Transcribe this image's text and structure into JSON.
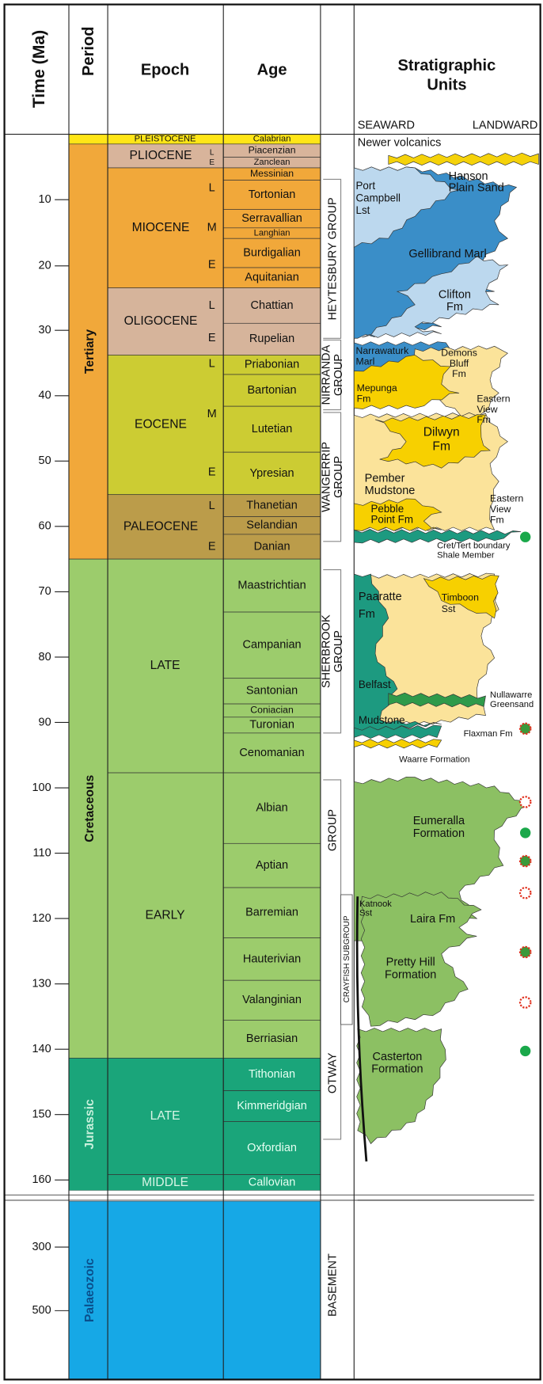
{
  "header": {
    "time": "Time (Ma)",
    "period": "Period",
    "epoch": "Epoch",
    "age": "Age",
    "units": [
      "Stratigraphic",
      "Units"
    ],
    "seaward": "SEAWARD",
    "landward": "LANDWARD"
  },
  "time_ticks": [
    10,
    20,
    30,
    40,
    50,
    60,
    70,
    80,
    90,
    100,
    110,
    120,
    130,
    140,
    150,
    160,
    300,
    500
  ],
  "periods": [
    "Tertiary",
    "Cretaceous",
    "Jurassic",
    "Palaeozoic"
  ],
  "epochs": [
    {
      "name": "PLEISTOCENE"
    },
    {
      "name": "PLIOCENE",
      "subdivisions": [
        "L",
        "E"
      ]
    },
    {
      "name": "MIOCENE",
      "subdivisions": [
        "L",
        "M",
        "E"
      ]
    },
    {
      "name": "OLIGOCENE",
      "subdivisions": [
        "L",
        "E"
      ]
    },
    {
      "name": "EOCENE",
      "subdivisions": [
        "L",
        "M",
        "E"
      ]
    },
    {
      "name": "PALEOCENE",
      "subdivisions": [
        "L",
        "E"
      ]
    },
    {
      "name": "LATE"
    },
    {
      "name": "EARLY"
    },
    {
      "name": "LATE"
    },
    {
      "name": "MIDDLE"
    }
  ],
  "ages": [
    "Calabrian",
    "Piacenzian",
    "Zanclean",
    "Messinian",
    "Tortonian",
    "Serravallian",
    "Langhian",
    "Burdigalian",
    "Aquitanian",
    "Chattian",
    "Rupelian",
    "Priabonian",
    "Bartonian",
    "Lutetian",
    "Ypresian",
    "Thanetian",
    "Selandian",
    "Danian",
    "Maastrichtian",
    "Campanian",
    "Santonian",
    "Coniacian",
    "Turonian",
    "Cenomanian",
    "Albian",
    "Aptian",
    "Barremian",
    "Hauterivian",
    "Valanginian",
    "Berriasian",
    "Tithonian",
    "Kimmeridgian",
    "Oxfordian",
    "Callovian"
  ],
  "groups": [
    {
      "label": [
        "HEYTESBURY GROUP"
      ]
    },
    {
      "label": [
        "NIRRANDA",
        "GROUP"
      ]
    },
    {
      "label": [
        "WANGERRIP",
        "GROUP"
      ]
    },
    {
      "label": [
        "SHERBROOK",
        "GROUP"
      ]
    },
    {
      "label": [
        "GROUP",
        "OTWAY"
      ]
    },
    {
      "label": [
        "BASEMENT"
      ]
    }
  ],
  "subgroup": "CRAYFISH SUBGROUP",
  "units": [
    {
      "lines": [
        "Newer volcanics"
      ]
    },
    {
      "lines": [
        "Hanson",
        "Plain Sand"
      ]
    },
    {
      "lines": [
        "Port",
        "Campbell",
        "Lst"
      ]
    },
    {
      "lines": [
        "Gellibrand Marl"
      ]
    },
    {
      "lines": [
        "Clifton",
        "Fm"
      ]
    },
    {
      "lines": [
        "Narrawaturk",
        "Marl"
      ]
    },
    {
      "lines": [
        "Demons",
        "Bluff",
        "Fm"
      ]
    },
    {
      "lines": [
        "Mepunga",
        "Fm"
      ]
    },
    {
      "lines": [
        "Eastern",
        "View",
        "Fm"
      ]
    },
    {
      "lines": [
        "Dilwyn",
        "Fm"
      ]
    },
    {
      "lines": [
        "Pember",
        "Mudstone"
      ]
    },
    {
      "lines": [
        "Pebble",
        "Point Fm"
      ]
    },
    {
      "lines": [
        "Eastern",
        "View",
        "Fm"
      ]
    },
    {
      "lines": [
        "Cret/Tert boundary",
        "Shale Member"
      ]
    },
    {
      "lines": [
        "Paaratte",
        "Fm"
      ]
    },
    {
      "lines": [
        "Timboon",
        "Sst"
      ]
    },
    {
      "lines": [
        "Belfast",
        "Mudstone"
      ]
    },
    {
      "lines": [
        "Nullawarre",
        "Greensand"
      ]
    },
    {
      "lines": [
        "Flaxman Fm"
      ]
    },
    {
      "lines": [
        "Waarre Formation"
      ]
    },
    {
      "lines": [
        "Eumeralla",
        "Formation"
      ]
    },
    {
      "lines": [
        "Katnook",
        "Sst"
      ]
    },
    {
      "lines": [
        "Laira Fm"
      ]
    },
    {
      "lines": [
        "Pretty Hill",
        "Formation"
      ]
    },
    {
      "lines": [
        "Casterton",
        "Formation"
      ]
    }
  ]
}
